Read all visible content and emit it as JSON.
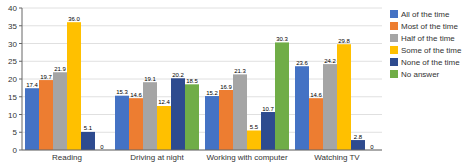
{
  "chart_data": {
    "type": "bar",
    "categories": [
      "Reading",
      "Driving at night",
      "Working with computer",
      "Watching TV"
    ],
    "series": [
      {
        "name": "All of the time",
        "color": "#4472C4",
        "values": [
          17.4,
          15.3,
          15.2,
          23.6
        ],
        "value_labels": [
          "17.4",
          "15.3",
          "15.2",
          "23.6"
        ]
      },
      {
        "name": "Most of the time",
        "color": "#ED7D31",
        "values": [
          19.7,
          14.6,
          16.9,
          14.6
        ],
        "value_labels": [
          "19.7",
          "14.6",
          "16.9",
          "14.6"
        ]
      },
      {
        "name": "Half of the time",
        "color": "#A5A5A5",
        "values": [
          21.9,
          19.1,
          21.3,
          24.2
        ],
        "value_labels": [
          "21.9",
          "19.1",
          "21.3",
          "24.2"
        ]
      },
      {
        "name": "Some of the time",
        "color": "#FFC000",
        "values": [
          36.0,
          12.4,
          5.5,
          29.8
        ],
        "value_labels": [
          "36.0",
          "12.4",
          "5.5",
          "29.8"
        ]
      },
      {
        "name": "None of the time",
        "color": "#2E4B8F",
        "values": [
          5.1,
          20.2,
          10.7,
          2.8
        ],
        "value_labels": [
          "5.1",
          "20.2",
          "10.7",
          "2.8"
        ]
      },
      {
        "name": "No answer",
        "color": "#70AD47",
        "values": [
          0.0,
          18.5,
          30.3,
          0.0
        ],
        "value_labels": [
          "0",
          "18.5",
          "30.3",
          "0"
        ]
      }
    ],
    "ylim": [
      0,
      40
    ],
    "yticks": [
      0,
      5,
      10,
      15,
      20,
      25,
      30,
      35,
      40
    ],
    "grid": true,
    "legend": "right",
    "data_labels": true
  }
}
